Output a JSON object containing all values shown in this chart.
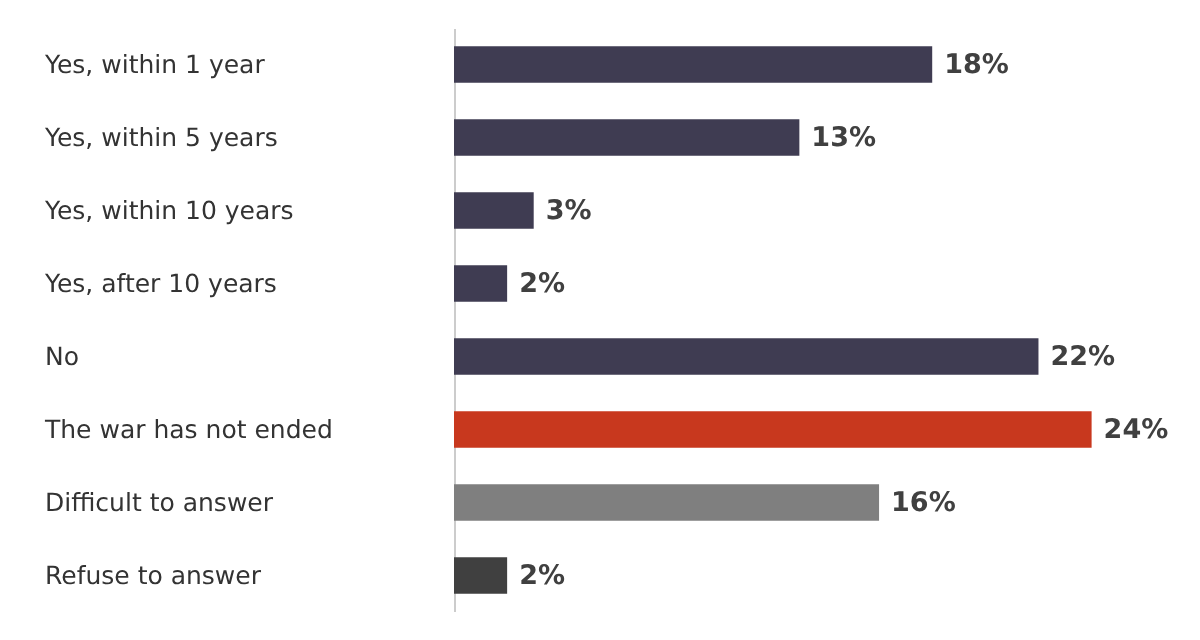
{
  "chart_data": {
    "type": "bar",
    "orientation": "horizontal",
    "categories": [
      "Yes, within 1 year",
      "Yes, within 5 years",
      "Yes, within 10 years",
      "Yes, after 10 years",
      "No",
      "The war has not ended",
      "Difficult to answer",
      "Refuse to answer"
    ],
    "values": [
      18,
      13,
      3,
      2,
      22,
      24,
      16,
      2
    ],
    "colors": [
      "#3f3c52",
      "#3f3c52",
      "#3f3c52",
      "#3f3c52",
      "#3f3c52",
      "#c8381e",
      "#7f7f7f",
      "#404040"
    ],
    "value_labels": [
      "18%",
      "13%",
      "3%",
      "2%",
      "22%",
      "24%",
      "16%",
      "2%"
    ],
    "grid": false
  }
}
